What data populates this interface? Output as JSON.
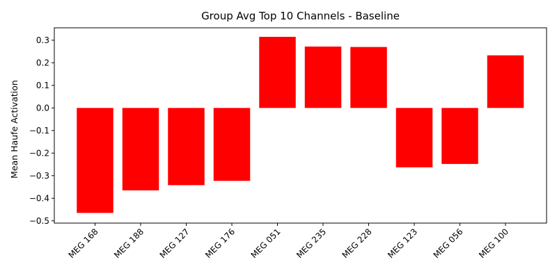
{
  "chart_data": {
    "type": "bar",
    "title": "Group Avg Top 10 Channels - Baseline",
    "xlabel": "",
    "ylabel": "Mean Haufe Activation",
    "categories": [
      "MEG 168",
      "MEG 188",
      "MEG 127",
      "MEG 176",
      "MEG 051",
      "MEG 235",
      "MEG 228",
      "MEG 123",
      "MEG 056",
      "MEG 100"
    ],
    "values": [
      -0.465,
      -0.365,
      -0.342,
      -0.323,
      0.315,
      0.272,
      0.27,
      -0.263,
      -0.248,
      0.233
    ],
    "ylim": [
      -0.51,
      0.355
    ],
    "yticks": [
      -0.5,
      -0.4,
      -0.3,
      -0.2,
      -0.1,
      0.0,
      0.1,
      0.2,
      0.3
    ],
    "ytick_labels": [
      "−0.5",
      "−0.4",
      "−0.3",
      "−0.2",
      "−0.1",
      "0.0",
      "0.1",
      "0.2",
      "0.3"
    ],
    "bar_color": "#ff0000",
    "grid": false,
    "legend": "none"
  }
}
